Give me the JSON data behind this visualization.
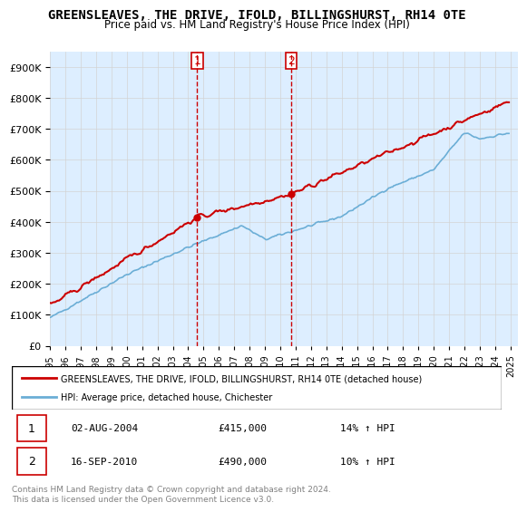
{
  "title": "GREENSLEAVES, THE DRIVE, IFOLD, BILLINGSHURST, RH14 0TE",
  "subtitle": "Price paid vs. HM Land Registry's House Price Index (HPI)",
  "legend_line1": "GREENSLEAVES, THE DRIVE, IFOLD, BILLINGSHURST, RH14 0TE (detached house)",
  "legend_line2": "HPI: Average price, detached house, Chichester",
  "footer": "Contains HM Land Registry data © Crown copyright and database right 2024.\nThis data is licensed under the Open Government Licence v3.0.",
  "sale1_label": "1",
  "sale1_date": "02-AUG-2004",
  "sale1_price": "£415,000",
  "sale1_hpi": "14% ↑ HPI",
  "sale2_label": "2",
  "sale2_date": "16-SEP-2010",
  "sale2_price": "£490,000",
  "sale2_hpi": "10% ↑ HPI",
  "sale1_x": 2004.58,
  "sale1_y": 415000,
  "sale2_x": 2010.71,
  "sale2_y": 490000,
  "hpi_color": "#6baed6",
  "price_color": "#cc0000",
  "vline_color": "#cc0000",
  "marker_color": "#cc0000",
  "bg_color": "#ddeeff",
  "plot_bg": "#ffffff",
  "ylim": [
    0,
    950000
  ],
  "xlim_start": 1995,
  "xlim_end": 2025,
  "yticks": [
    0,
    100000,
    200000,
    300000,
    400000,
    500000,
    600000,
    700000,
    800000,
    900000
  ]
}
